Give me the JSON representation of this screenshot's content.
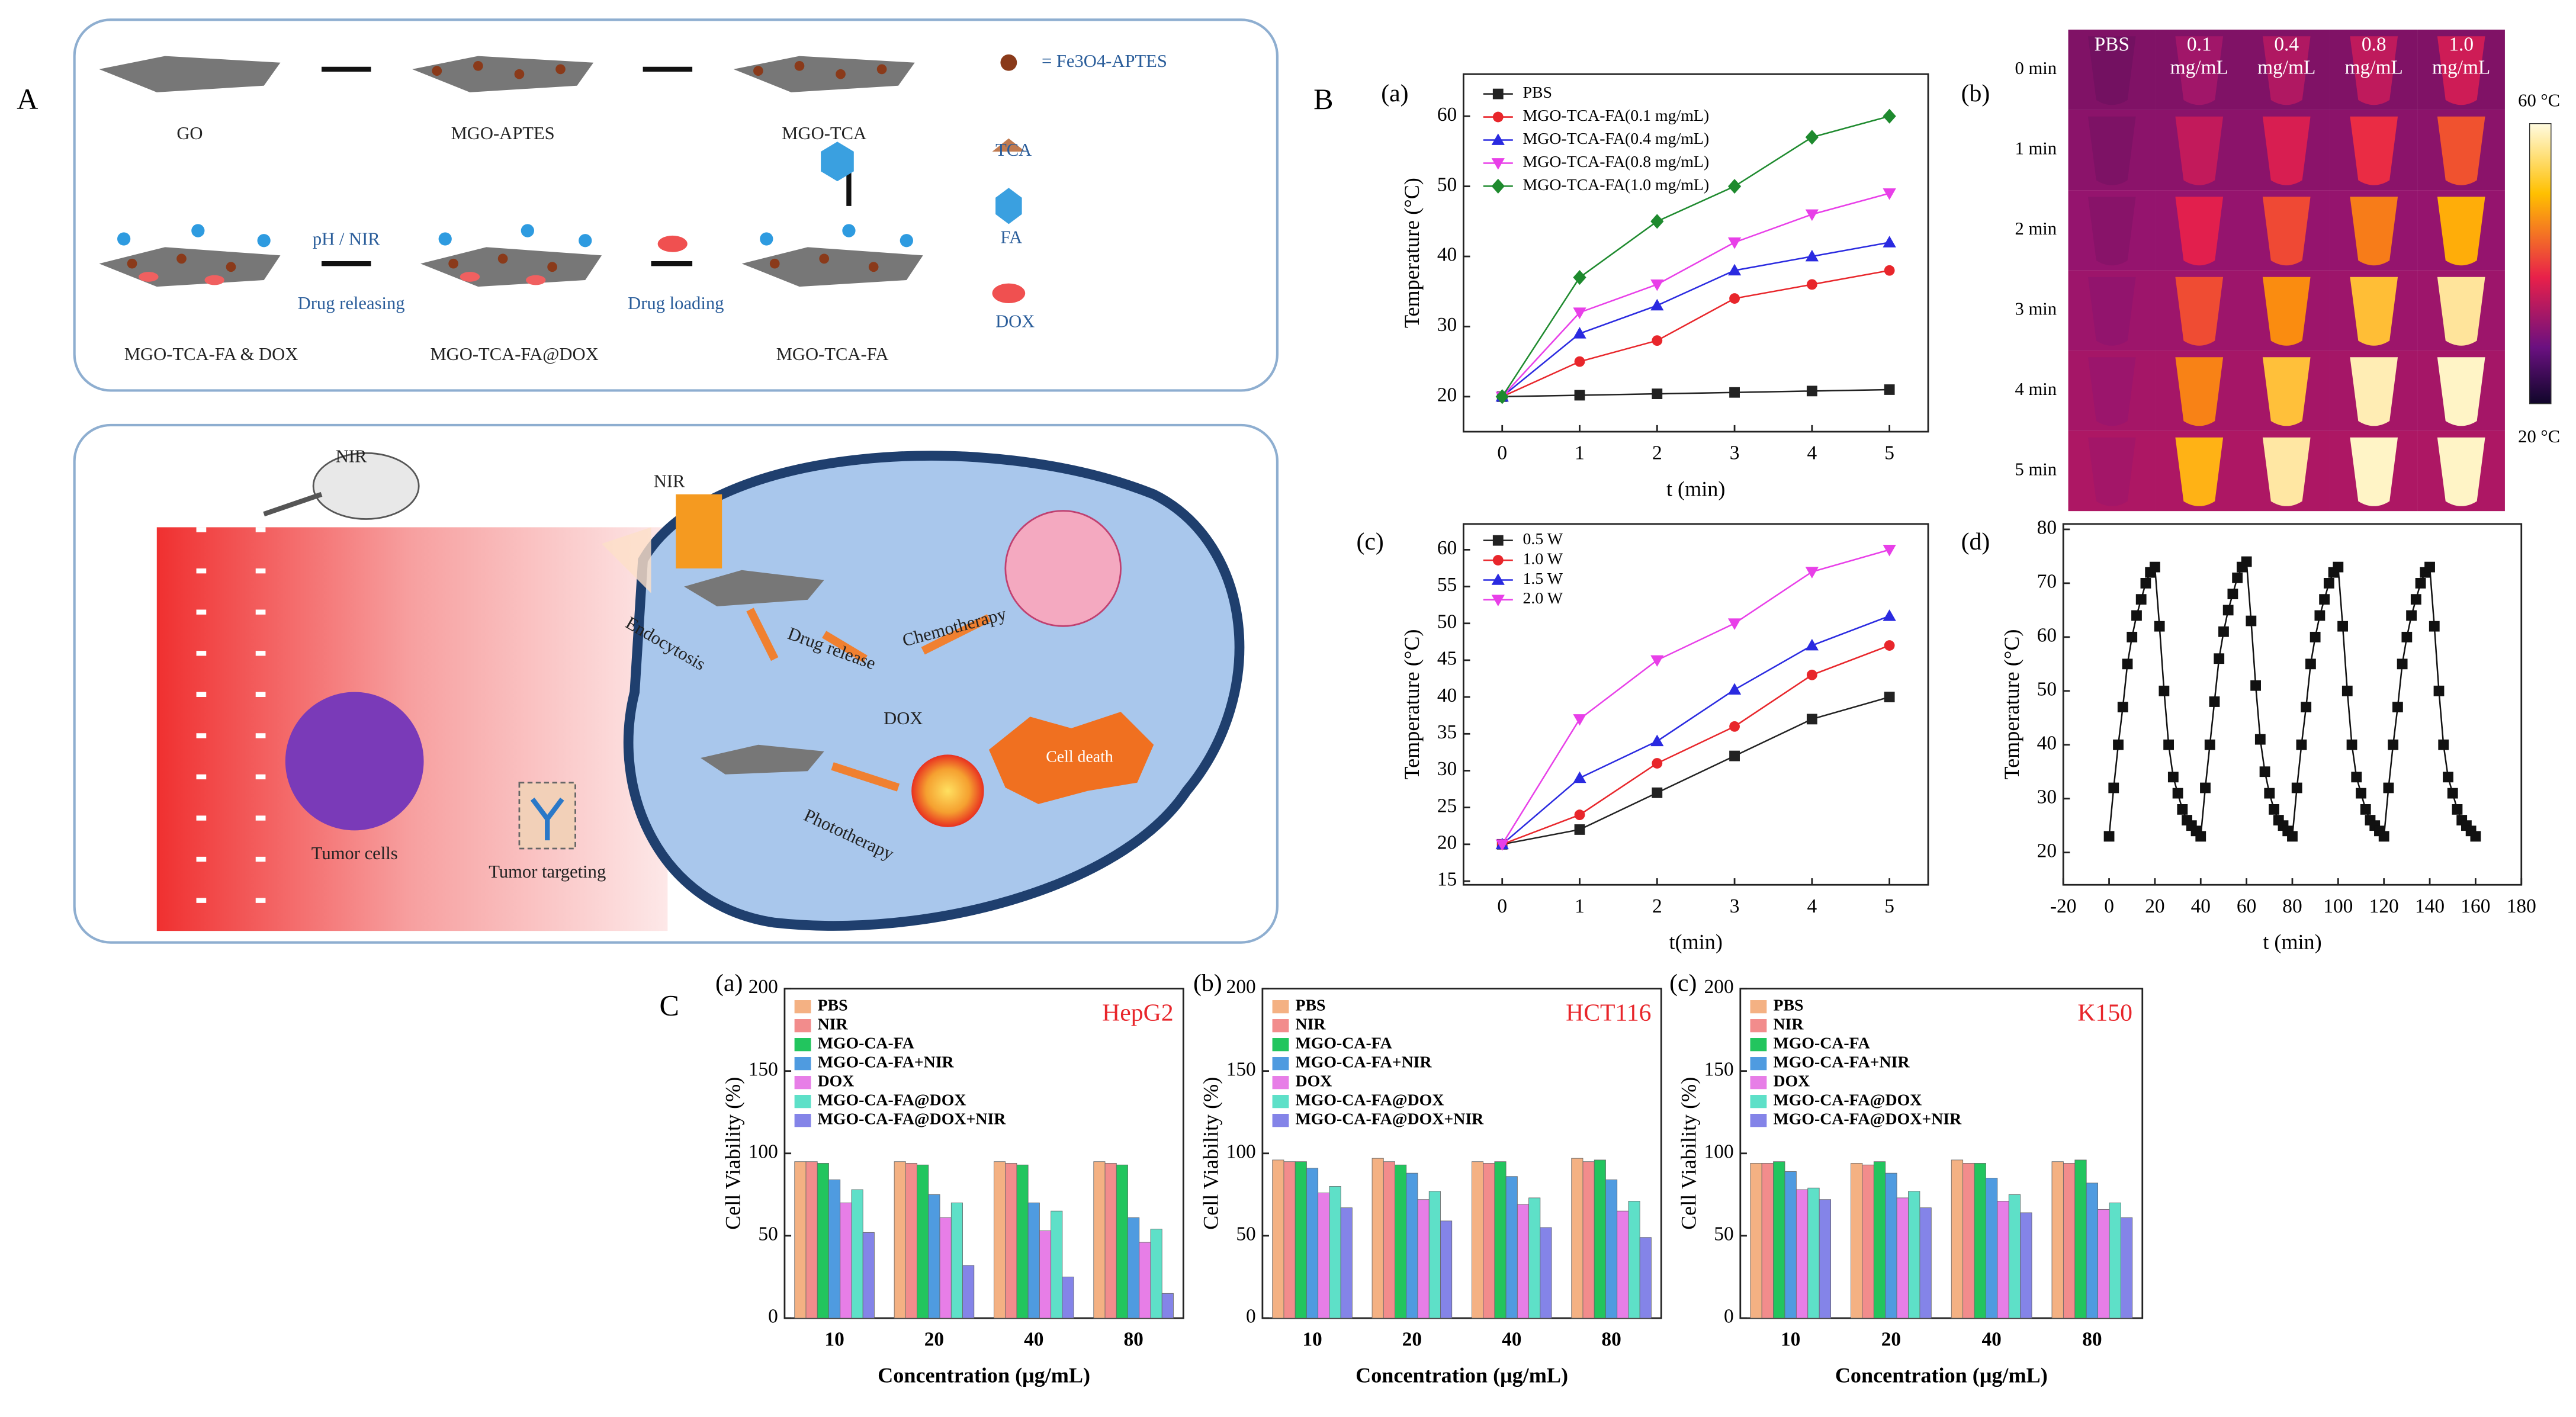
{
  "panel_labels": {
    "A": "A",
    "B": "B",
    "C": "C"
  },
  "diagram": {
    "go": "GO",
    "mgo_aptes": "MGO-APTES",
    "mgo_tca": "MGO-TCA",
    "fe3o4": "= Fe3O4-APTES",
    "tca": "TCA",
    "fa": "FA",
    "dox": "DOX",
    "ph_nir": "pH / NIR",
    "drug_releasing": "Drug releasing",
    "drug_loading": "Drug loading",
    "mgo_tca_fa_dox": "MGO-TCA-FA  &  DOX",
    "mgo_tca_fa_at_dox": "MGO-TCA-FA@DOX",
    "mgo_tca_fa": "MGO-TCA-FA",
    "nir_mouse": "NIR",
    "nir_cell": "NIR",
    "endocytosis": "Endocytosis",
    "drug_release": "Drug release",
    "chemotherapy": "Chemotherapy",
    "dox_cell": "DOX",
    "phototherapy": "Phototherapy",
    "cell_death": "Cell death",
    "tumor_cells": "Tumor cells",
    "tumor_targeting": "Tumor targeting"
  },
  "thermal_image": {
    "label": "(b)",
    "columns": [
      [
        "PBS"
      ],
      [
        "0.1",
        "mg/mL"
      ],
      [
        "0.4",
        "mg/mL"
      ],
      [
        "0.8",
        "mg/mL"
      ],
      [
        "1.0",
        "mg/mL"
      ]
    ],
    "rows": [
      "0 min",
      "1 min",
      "2 min",
      "3 min",
      "4 min",
      "5 min"
    ],
    "colorbar": [
      "60 °C",
      "20 °C"
    ]
  },
  "chart_data": [
    {
      "type": "line",
      "label": "(a)",
      "x_label": "t (min)",
      "y_label": "Temperature (°C)",
      "x": [
        0,
        1,
        2,
        3,
        4,
        5
      ],
      "xlim": [
        -0.5,
        5.5
      ],
      "xticks": [
        0,
        1,
        2,
        3,
        4,
        5
      ],
      "ylim": [
        15,
        66
      ],
      "yticks": [
        20,
        30,
        40,
        50,
        60
      ],
      "series": [
        {
          "name": "PBS",
          "color": "#222222",
          "marker": "square",
          "values": [
            20,
            20.2,
            20.4,
            20.6,
            20.8,
            21
          ]
        },
        {
          "name": "MGO-TCA-FA(0.1 mg/mL)",
          "color": "#e8262b",
          "marker": "circle",
          "values": [
            20,
            25,
            28,
            34,
            36,
            38
          ]
        },
        {
          "name": "MGO-TCA-FA(0.4 mg/mL)",
          "color": "#2a2ae0",
          "marker": "triangle",
          "values": [
            20,
            29,
            33,
            38,
            40,
            42
          ]
        },
        {
          "name": "MGO-TCA-FA(0.8 mg/mL)",
          "color": "#e83fe8",
          "marker": "triangle-down",
          "values": [
            20,
            32,
            36,
            42,
            46,
            49
          ]
        },
        {
          "name": "MGO-TCA-FA(1.0 mg/mL)",
          "color": "#1e8a2e",
          "marker": "diamond",
          "values": [
            20,
            37,
            45,
            50,
            57,
            60
          ]
        }
      ]
    },
    {
      "type": "line",
      "label": "(c)",
      "x_label": "t(min)",
      "y_label": "Temperature (°C)",
      "x": [
        0,
        1,
        2,
        3,
        4,
        5
      ],
      "xlim": [
        -0.5,
        5.5
      ],
      "xticks": [
        0,
        1,
        2,
        3,
        4,
        5
      ],
      "ylim": [
        14.5,
        63.5
      ],
      "yticks": [
        15,
        20,
        25,
        30,
        35,
        40,
        45,
        50,
        55,
        60
      ],
      "series": [
        {
          "name": "0.5 W",
          "color": "#222222",
          "marker": "square",
          "values": [
            20,
            22,
            27,
            32,
            37,
            40
          ]
        },
        {
          "name": "1.0 W",
          "color": "#e8262b",
          "marker": "circle",
          "values": [
            20,
            24,
            31,
            36,
            43,
            47
          ]
        },
        {
          "name": "1.5 W",
          "color": "#2a2ae0",
          "marker": "triangle",
          "values": [
            20,
            29,
            34,
            41,
            47,
            51
          ]
        },
        {
          "name": "2.0 W",
          "color": "#e83fe8",
          "marker": "triangle-down",
          "values": [
            20,
            37,
            45,
            50,
            57,
            60
          ]
        }
      ]
    },
    {
      "type": "line",
      "label": "(d)",
      "x_label": "t (min)",
      "y_label": "Temperature (°C)",
      "x": [
        0,
        2,
        4,
        6,
        8,
        10,
        12,
        14,
        16,
        18,
        20,
        22,
        24,
        26,
        28,
        30,
        32,
        34,
        36,
        38,
        40,
        42,
        44,
        46,
        48,
        50,
        52,
        54,
        56,
        58,
        60,
        62,
        64,
        66,
        68,
        70,
        72,
        74,
        76,
        78,
        80,
        82,
        84,
        86,
        88,
        90,
        92,
        94,
        96,
        98,
        100,
        102,
        104,
        106,
        108,
        110,
        112,
        114,
        116,
        118,
        120,
        122,
        124,
        126,
        128,
        130,
        132,
        134,
        136,
        138,
        140,
        142,
        144,
        146,
        148,
        150,
        152,
        154,
        156,
        158,
        160
      ],
      "xlim": [
        -20,
        180
      ],
      "xticks": [
        -20,
        0,
        20,
        40,
        60,
        80,
        100,
        120,
        140,
        160,
        180
      ],
      "ylim": [
        14,
        81
      ],
      "yticks": [
        20,
        30,
        40,
        50,
        60,
        70,
        80
      ],
      "series": [
        {
          "color": "#111111",
          "marker": "square",
          "values": [
            23,
            32,
            40,
            47,
            55,
            60,
            64,
            67,
            70,
            72,
            73,
            62,
            50,
            40,
            34,
            31,
            28,
            26,
            25,
            24,
            23,
            32,
            40,
            48,
            56,
            61,
            65,
            68,
            71,
            73,
            74,
            63,
            51,
            41,
            35,
            31,
            28,
            26,
            25,
            24,
            23,
            32,
            40,
            47,
            55,
            60,
            64,
            67,
            70,
            72,
            73,
            62,
            50,
            40,
            34,
            31,
            28,
            26,
            25,
            24,
            23,
            32,
            40,
            47,
            55,
            60,
            64,
            67,
            70,
            72,
            73,
            62,
            50,
            40,
            34,
            31,
            28,
            26,
            25,
            24,
            23
          ]
        }
      ]
    },
    {
      "type": "bar",
      "label": "(a)",
      "title": "HepG2",
      "title_color": "#e8262b",
      "x_label": "Concentration (μg/mL)",
      "y_label": "Cell Viability (%)",
      "categories": [
        "10",
        "20",
        "40",
        "80"
      ],
      "ylim": [
        0,
        200
      ],
      "yticks": [
        0,
        50,
        100,
        150,
        200
      ],
      "series": [
        {
          "name": "PBS",
          "color": "#f4b183",
          "values": [
            95,
            95,
            95,
            95
          ]
        },
        {
          "name": "NIR",
          "color": "#f28c8c",
          "values": [
            95,
            94,
            94,
            94
          ]
        },
        {
          "name": "MGO-CA-FA",
          "color": "#22c55e",
          "values": [
            94,
            93,
            93,
            93
          ]
        },
        {
          "name": "MGO-CA-FA+NIR",
          "color": "#4f9be0",
          "values": [
            84,
            75,
            70,
            61
          ]
        },
        {
          "name": "DOX",
          "color": "#e77ee7",
          "values": [
            70,
            61,
            53,
            46
          ]
        },
        {
          "name": "MGO-CA-FA@DOX",
          "color": "#5ee0c8",
          "values": [
            78,
            70,
            65,
            54
          ]
        },
        {
          "name": "MGO-CA-FA@DOX+NIR",
          "color": "#8484e8",
          "values": [
            52,
            32,
            25,
            15
          ]
        }
      ]
    },
    {
      "type": "bar",
      "label": "(b)",
      "title": "HCT116",
      "title_color": "#e8262b",
      "x_label": "Concentration (μg/mL)",
      "y_label": "Cell Viability (%)",
      "categories": [
        "10",
        "20",
        "40",
        "80"
      ],
      "ylim": [
        0,
        200
      ],
      "yticks": [
        0,
        50,
        100,
        150,
        200
      ],
      "series": [
        {
          "name": "PBS",
          "color": "#f4b183",
          "values": [
            96,
            97,
            95,
            97
          ]
        },
        {
          "name": "NIR",
          "color": "#f28c8c",
          "values": [
            95,
            95,
            94,
            95
          ]
        },
        {
          "name": "MGO-CA-FA",
          "color": "#22c55e",
          "values": [
            95,
            93,
            95,
            96
          ]
        },
        {
          "name": "MGO-CA-FA+NIR",
          "color": "#4f9be0",
          "values": [
            91,
            88,
            86,
            84
          ]
        },
        {
          "name": "DOX",
          "color": "#e77ee7",
          "values": [
            76,
            72,
            69,
            65
          ]
        },
        {
          "name": "MGO-CA-FA@DOX",
          "color": "#5ee0c8",
          "values": [
            80,
            77,
            73,
            71
          ]
        },
        {
          "name": "MGO-CA-FA@DOX+NIR",
          "color": "#8484e8",
          "values": [
            67,
            59,
            55,
            49
          ]
        }
      ]
    },
    {
      "type": "bar",
      "label": "(c)",
      "title": "K150",
      "title_color": "#e8262b",
      "x_label": "Concentration (μg/mL)",
      "y_label": "Cell Viability (%)",
      "categories": [
        "10",
        "20",
        "40",
        "80"
      ],
      "ylim": [
        0,
        200
      ],
      "yticks": [
        0,
        50,
        100,
        150,
        200
      ],
      "series": [
        {
          "name": "PBS",
          "color": "#f4b183",
          "values": [
            94,
            94,
            96,
            95
          ]
        },
        {
          "name": "NIR",
          "color": "#f28c8c",
          "values": [
            94,
            93,
            94,
            94
          ]
        },
        {
          "name": "MGO-CA-FA",
          "color": "#22c55e",
          "values": [
            95,
            95,
            94,
            96
          ]
        },
        {
          "name": "MGO-CA-FA+NIR",
          "color": "#4f9be0",
          "values": [
            89,
            88,
            85,
            82
          ]
        },
        {
          "name": "DOX",
          "color": "#e77ee7",
          "values": [
            78,
            73,
            71,
            66
          ]
        },
        {
          "name": "MGO-CA-FA@DOX",
          "color": "#5ee0c8",
          "values": [
            79,
            77,
            75,
            70
          ]
        },
        {
          "name": "MGO-CA-FA@DOX+NIR",
          "color": "#8484e8",
          "values": [
            72,
            67,
            64,
            61
          ]
        }
      ]
    }
  ]
}
